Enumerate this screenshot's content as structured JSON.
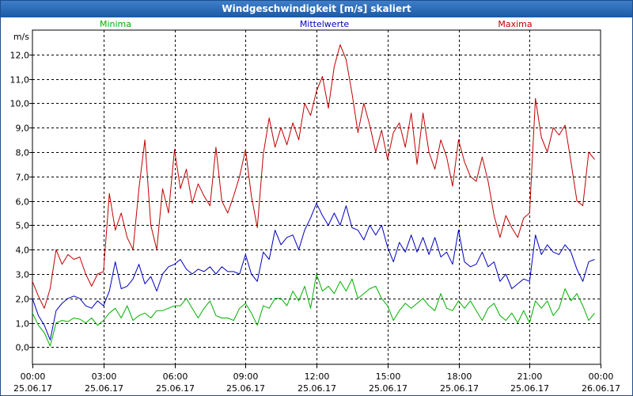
{
  "window": {
    "title": "Windgeschwindigkeit [m/s] skaliert"
  },
  "colors": {
    "minima": "#00b000",
    "mittel": "#0000c0",
    "maxima": "#c00000",
    "grid": "#000000"
  },
  "chart_data": {
    "type": "line",
    "title": "Windgeschwindigkeit [m/s] skaliert",
    "ylabel": "m/s",
    "ylim": [
      -0.7,
      13.0
    ],
    "xlim": [
      0,
      24
    ],
    "yticks": [
      0.0,
      1.0,
      2.0,
      3.0,
      4.0,
      5.0,
      6.0,
      7.0,
      8.0,
      9.0,
      10.0,
      11.0,
      12.0
    ],
    "ytick_labels": [
      "0,0",
      "1,0",
      "2,0",
      "3,0",
      "4,0",
      "5,0",
      "6,0",
      "7,0",
      "8,0",
      "9,0",
      "10,0",
      "11,0",
      "12,0"
    ],
    "xticks": [
      0,
      3,
      6,
      9,
      12,
      15,
      18,
      21,
      24
    ],
    "xtick_time": [
      "00:00",
      "03:00",
      "06:00",
      "09:00",
      "12:00",
      "15:00",
      "18:00",
      "21:00",
      "00:00"
    ],
    "xtick_date": [
      "25.06.17",
      "25.06.17",
      "25.06.17",
      "25.06.17",
      "25.06.17",
      "25.06.17",
      "25.06.17",
      "25.06.17",
      "26.06.17"
    ],
    "legend": [
      "Minima",
      "Mittelwerte",
      "Maxima"
    ],
    "series": [
      {
        "name": "Minima",
        "x": [
          0.0,
          0.25,
          0.5,
          0.75,
          1.0,
          1.25,
          1.5,
          1.75,
          2.0,
          2.25,
          2.5,
          2.75,
          3.0,
          3.25,
          3.5,
          3.75,
          4.0,
          4.25,
          4.5,
          4.75,
          5.0,
          5.25,
          5.5,
          5.75,
          6.0,
          6.25,
          6.5,
          6.75,
          7.0,
          7.25,
          7.5,
          7.75,
          8.0,
          8.25,
          8.5,
          8.75,
          9.0,
          9.25,
          9.5,
          9.75,
          10.0,
          10.25,
          10.5,
          10.75,
          11.0,
          11.25,
          11.5,
          11.75,
          12.0,
          12.25,
          12.5,
          12.75,
          13.0,
          13.25,
          13.5,
          13.75,
          14.0,
          14.25,
          14.5,
          14.75,
          15.0,
          15.25,
          15.5,
          15.75,
          16.0,
          16.25,
          16.5,
          16.75,
          17.0,
          17.25,
          17.5,
          17.75,
          18.0,
          18.25,
          18.5,
          18.75,
          19.0,
          19.25,
          19.5,
          19.75,
          20.0,
          20.25,
          20.5,
          20.75,
          21.0,
          21.25,
          21.5,
          21.75,
          22.0,
          22.25,
          22.5,
          22.75,
          23.0,
          23.25,
          23.5,
          23.75
        ],
        "values": [
          1.4,
          0.9,
          0.6,
          0.05,
          1.0,
          1.1,
          1.05,
          1.2,
          1.15,
          1.0,
          1.2,
          0.9,
          1.1,
          1.4,
          1.6,
          1.2,
          1.7,
          1.1,
          1.3,
          1.4,
          1.2,
          1.5,
          1.5,
          1.6,
          1.7,
          1.7,
          2.0,
          1.6,
          1.2,
          1.6,
          1.9,
          1.3,
          1.2,
          1.2,
          1.1,
          1.6,
          1.8,
          1.4,
          0.9,
          1.7,
          1.6,
          2.0,
          2.0,
          1.7,
          2.3,
          1.9,
          2.5,
          1.6,
          3.0,
          2.3,
          2.5,
          2.2,
          2.7,
          2.3,
          2.8,
          2.0,
          2.2,
          2.4,
          2.5,
          2.0,
          1.7,
          1.1,
          1.5,
          1.8,
          1.6,
          1.8,
          2.0,
          1.7,
          1.5,
          2.2,
          1.6,
          1.5,
          1.9,
          1.6,
          1.9,
          1.5,
          1.1,
          1.6,
          1.8,
          1.3,
          1.1,
          1.4,
          1.0,
          1.5,
          1.0,
          1.9,
          1.6,
          1.9,
          1.3,
          1.6,
          2.4,
          1.9,
          2.2,
          1.7,
          1.1,
          1.4
        ]
      },
      {
        "name": "Mittelwerte",
        "x": [
          0.0,
          0.25,
          0.5,
          0.75,
          1.0,
          1.25,
          1.5,
          1.75,
          2.0,
          2.25,
          2.5,
          2.75,
          3.0,
          3.25,
          3.5,
          3.75,
          4.0,
          4.25,
          4.5,
          4.75,
          5.0,
          5.25,
          5.5,
          5.75,
          6.0,
          6.25,
          6.5,
          6.75,
          7.0,
          7.25,
          7.5,
          7.75,
          8.0,
          8.25,
          8.5,
          8.75,
          9.0,
          9.25,
          9.5,
          9.75,
          10.0,
          10.25,
          10.5,
          10.75,
          11.0,
          11.25,
          11.5,
          11.75,
          12.0,
          12.25,
          12.5,
          12.75,
          13.0,
          13.25,
          13.5,
          13.75,
          14.0,
          14.25,
          14.5,
          14.75,
          15.0,
          15.25,
          15.5,
          15.75,
          16.0,
          16.25,
          16.5,
          16.75,
          17.0,
          17.25,
          17.5,
          17.75,
          18.0,
          18.25,
          18.5,
          18.75,
          19.0,
          19.25,
          19.5,
          19.75,
          20.0,
          20.25,
          20.5,
          20.75,
          21.0,
          21.25,
          21.5,
          21.75,
          22.0,
          22.25,
          22.5,
          22.75,
          23.0,
          23.25,
          23.5,
          23.75
        ],
        "values": [
          2.0,
          1.3,
          0.9,
          0.3,
          1.5,
          1.8,
          2.0,
          2.1,
          2.0,
          1.7,
          1.6,
          1.9,
          1.7,
          2.3,
          3.5,
          2.4,
          2.5,
          2.8,
          3.4,
          2.6,
          2.9,
          2.3,
          3.0,
          3.3,
          3.4,
          3.6,
          3.2,
          3.0,
          3.2,
          3.1,
          3.3,
          3.0,
          3.3,
          3.1,
          3.1,
          3.0,
          3.8,
          3.0,
          2.7,
          3.9,
          3.6,
          4.8,
          4.2,
          4.5,
          4.6,
          4.0,
          4.8,
          5.3,
          5.9,
          5.4,
          5.0,
          5.5,
          5.0,
          5.8,
          4.9,
          4.8,
          4.4,
          5.0,
          4.6,
          5.0,
          4.1,
          3.5,
          4.3,
          3.9,
          4.6,
          3.9,
          4.5,
          3.8,
          4.5,
          3.7,
          3.9,
          3.4,
          4.8,
          3.5,
          3.3,
          3.4,
          3.9,
          3.3,
          3.5,
          2.7,
          3.0,
          2.4,
          2.6,
          2.8,
          2.7,
          4.6,
          3.8,
          4.2,
          3.9,
          3.8,
          4.2,
          3.9,
          3.2,
          2.7,
          3.5,
          3.6
        ]
      },
      {
        "name": "Maxima",
        "x": [
          0.0,
          0.25,
          0.5,
          0.75,
          1.0,
          1.25,
          1.5,
          1.75,
          2.0,
          2.25,
          2.5,
          2.75,
          3.0,
          3.25,
          3.5,
          3.75,
          4.0,
          4.25,
          4.5,
          4.75,
          5.0,
          5.25,
          5.5,
          5.75,
          6.0,
          6.25,
          6.5,
          6.75,
          7.0,
          7.25,
          7.5,
          7.75,
          8.0,
          8.25,
          8.5,
          8.75,
          9.0,
          9.25,
          9.5,
          9.75,
          10.0,
          10.25,
          10.5,
          10.75,
          11.0,
          11.25,
          11.5,
          11.75,
          12.0,
          12.25,
          12.5,
          12.75,
          13.0,
          13.25,
          13.5,
          13.75,
          14.0,
          14.25,
          14.5,
          14.75,
          15.0,
          15.25,
          15.5,
          15.75,
          16.0,
          16.25,
          16.5,
          16.75,
          17.0,
          17.25,
          17.5,
          17.75,
          18.0,
          18.25,
          18.5,
          18.75,
          19.0,
          19.25,
          19.5,
          19.75,
          20.0,
          20.25,
          20.5,
          20.75,
          21.0,
          21.25,
          21.5,
          21.75,
          22.0,
          22.25,
          22.5,
          22.75,
          23.0,
          23.25,
          23.5,
          23.75
        ],
        "values": [
          2.7,
          2.1,
          1.6,
          2.4,
          4.0,
          3.4,
          3.8,
          3.6,
          3.7,
          3.0,
          2.5,
          3.0,
          3.1,
          6.3,
          4.8,
          5.5,
          4.5,
          4.0,
          6.5,
          8.5,
          5.0,
          4.0,
          6.5,
          5.5,
          8.1,
          6.5,
          7.3,
          5.9,
          6.7,
          6.2,
          5.8,
          8.2,
          6.0,
          5.5,
          6.2,
          7.0,
          8.1,
          6.2,
          4.9,
          7.9,
          9.4,
          8.2,
          9.0,
          8.3,
          9.2,
          8.5,
          10.0,
          9.5,
          10.5,
          11.1,
          9.8,
          11.5,
          12.4,
          11.8,
          10.4,
          8.8,
          10.0,
          9.1,
          8.0,
          8.9,
          7.7,
          8.8,
          9.2,
          8.2,
          9.6,
          7.5,
          9.6,
          8.0,
          7.3,
          8.5,
          7.8,
          6.6,
          8.5,
          7.6,
          7.0,
          6.8,
          7.8,
          6.8,
          5.4,
          4.5,
          5.4,
          4.9,
          4.5,
          5.3,
          5.5,
          10.2,
          8.6,
          8.0,
          9.0,
          8.7,
          9.1,
          7.6,
          6.0,
          5.8,
          8.0,
          7.7
        ]
      }
    ]
  }
}
